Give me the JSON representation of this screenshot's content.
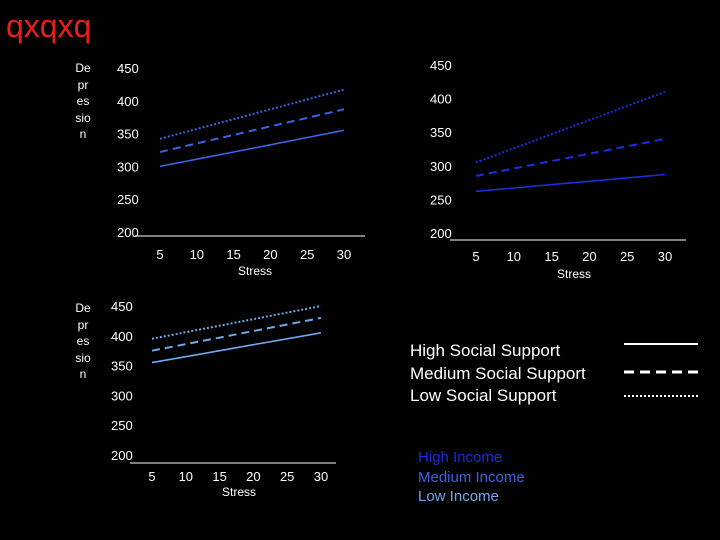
{
  "slide_title": "qxqxq",
  "chart_data": [
    {
      "type": "line",
      "id": "top-left",
      "ylabel": "Depression",
      "xlabel": "Stress",
      "x": [
        5,
        10,
        15,
        20,
        25,
        30
      ],
      "yticks": [
        450,
        400,
        350,
        300,
        250,
        200
      ],
      "ylim": [
        200,
        450
      ],
      "series": [
        {
          "name": "High Social Support",
          "style": "solid",
          "color": "#3b63e6",
          "values": [
            300,
            311,
            322,
            333,
            344,
            355
          ]
        },
        {
          "name": "Medium Social Support",
          "style": "dashed",
          "color": "#3b63e6",
          "values": [
            322,
            335,
            348,
            361,
            374,
            387
          ]
        },
        {
          "name": "Low Social Support",
          "style": "dotted",
          "color": "#3b63e6",
          "values": [
            342,
            357,
            372,
            387,
            402,
            417
          ]
        }
      ]
    },
    {
      "type": "line",
      "id": "top-right",
      "ylabel": "",
      "xlabel": "Stress",
      "x": [
        5,
        10,
        15,
        20,
        25,
        30
      ],
      "yticks": [
        450,
        400,
        350,
        300,
        250,
        200
      ],
      "ylim": [
        200,
        450
      ],
      "series": [
        {
          "name": "High Social Support",
          "style": "solid",
          "color": "#1a2ee0",
          "values": [
            262,
            267,
            272,
            277,
            282,
            287
          ]
        },
        {
          "name": "Medium Social Support",
          "style": "dashed",
          "color": "#1a2ee0",
          "values": [
            285,
            296,
            307,
            318,
            329,
            340
          ]
        },
        {
          "name": "Low Social Support",
          "style": "dotted",
          "color": "#1a2ee0",
          "values": [
            305,
            326,
            347,
            368,
            389,
            410
          ]
        }
      ]
    },
    {
      "type": "line",
      "id": "bottom-left",
      "ylabel": "Depression",
      "xlabel": "Stress",
      "x": [
        5,
        10,
        15,
        20,
        25,
        30
      ],
      "yticks": [
        450,
        400,
        350,
        300,
        250,
        200
      ],
      "ylim": [
        200,
        450
      ],
      "series": [
        {
          "name": "High Social Support",
          "style": "solid",
          "color": "#6ea8ec",
          "values": [
            355,
            365,
            375,
            385,
            395,
            405
          ]
        },
        {
          "name": "Medium Social Support",
          "style": "dashed",
          "color": "#6ea8ec",
          "values": [
            375,
            386,
            397,
            408,
            419,
            430
          ]
        },
        {
          "name": "Low Social Support",
          "style": "dotted",
          "color": "#6ea8ec",
          "values": [
            395,
            406,
            417,
            428,
            439,
            450
          ]
        }
      ]
    }
  ],
  "legend_style": {
    "items": [
      {
        "label": "High Social Support",
        "style": "solid"
      },
      {
        "label": "Medium Social Support",
        "style": "dashed"
      },
      {
        "label": "Low Social Support",
        "style": "dotted"
      }
    ]
  },
  "legend_income": {
    "items": [
      {
        "label": "High Income",
        "color": "#1a2ee0"
      },
      {
        "label": "Medium Income",
        "color": "#3b63e6"
      },
      {
        "label": "Low Income",
        "color": "#6ea8ec"
      }
    ]
  }
}
